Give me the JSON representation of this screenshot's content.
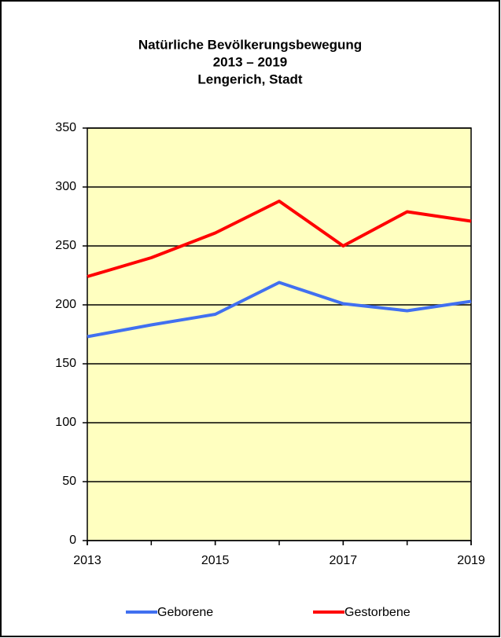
{
  "chart_data": {
    "type": "line",
    "title": [
      "Natürliche Bevölkerungsbewegung",
      "2013 – 2019",
      "Lengerich, Stadt"
    ],
    "x": [
      2013,
      2014,
      2015,
      2016,
      2017,
      2018,
      2019
    ],
    "series": [
      {
        "name": "Geborene",
        "color": "#4170f0",
        "values": [
          173,
          183,
          192,
          219,
          201,
          195,
          203
        ]
      },
      {
        "name": "Gestorbene",
        "color": "#ff0000",
        "values": [
          224,
          240,
          261,
          288,
          250,
          279,
          271
        ]
      }
    ],
    "xlim": [
      2013,
      2019
    ],
    "xticks": [
      2013,
      2015,
      2017,
      2019
    ],
    "ylim": [
      0,
      350
    ],
    "yticks": [
      0,
      50,
      100,
      150,
      200,
      250,
      300,
      350
    ],
    "grid": true,
    "plot_background": "#ffffc0",
    "legend": "bottom"
  }
}
